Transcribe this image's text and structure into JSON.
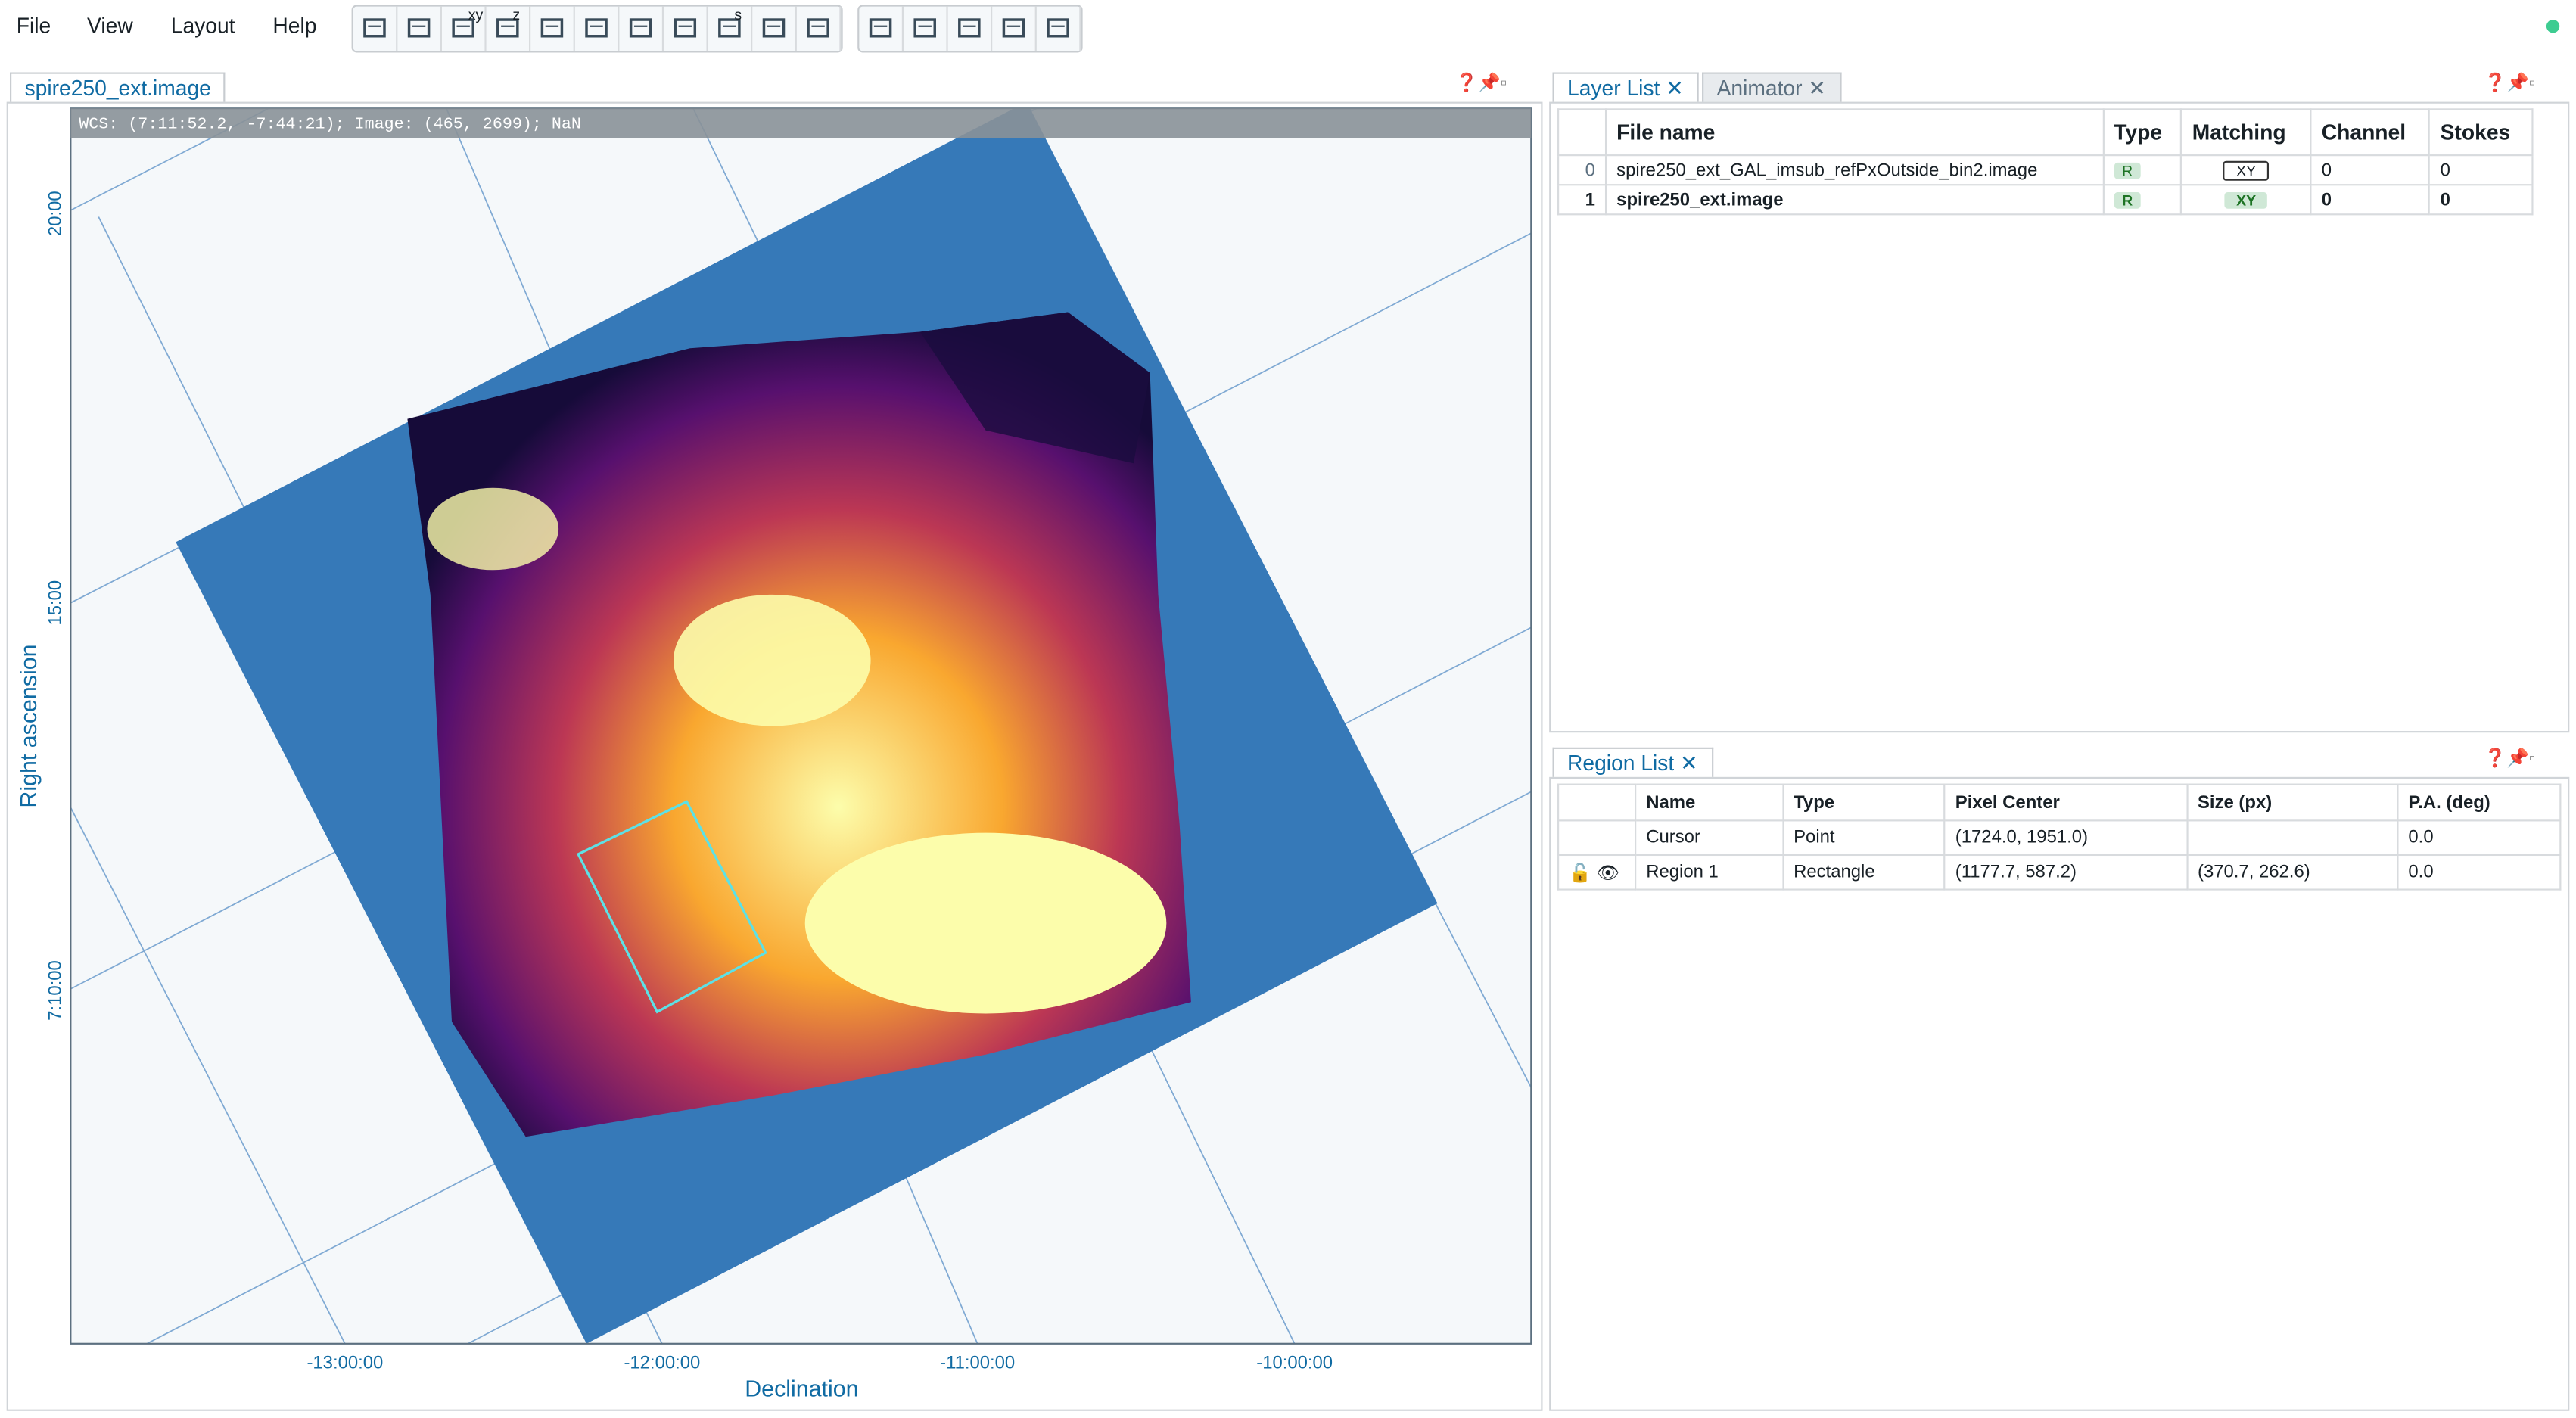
{
  "menu": {
    "items": [
      "File",
      "View",
      "Layout",
      "Help"
    ]
  },
  "toolbar": {
    "icon_labels": [
      "xy",
      "z",
      "s"
    ]
  },
  "image_view": {
    "tab": "spire250_ext.image",
    "wcs_info": "WCS: (7:11:52.2, -7:44:21); Image: (465, 2699); NaN",
    "y_axis_label": "Right ascension",
    "x_axis_label": "Declination",
    "y_ticks": [
      "20:00",
      "15:00",
      "7:10:00"
    ],
    "x_ticks": [
      "-13:00:00",
      "-12:00:00",
      "-11:00:00",
      "-10:00:00"
    ]
  },
  "layer_list": {
    "tabs": [
      "Layer List",
      "Animator"
    ],
    "columns": [
      "File name",
      "Type",
      "Matching",
      "Channel",
      "Stokes"
    ],
    "rows": [
      [
        "0",
        "spire250_ext_GAL_imsub_refPxOutside_bin2.image",
        "R",
        "XY",
        "0",
        "0"
      ],
      [
        "1",
        "spire250_ext.image",
        "R",
        "XY",
        "0",
        "0"
      ]
    ]
  },
  "region_list": {
    "tab": "Region List",
    "columns": [
      "Name",
      "Type",
      "Pixel Center",
      "Size (px)",
      "P.A. (deg)"
    ],
    "rows": [
      [
        "Cursor",
        "Point",
        "(1724.0, 1951.0)",
        "",
        "0.0"
      ],
      [
        "Region 1",
        "Rectangle",
        "(1177.7, 587.2)",
        "(370.7, 262.6)",
        "0.0"
      ]
    ]
  }
}
